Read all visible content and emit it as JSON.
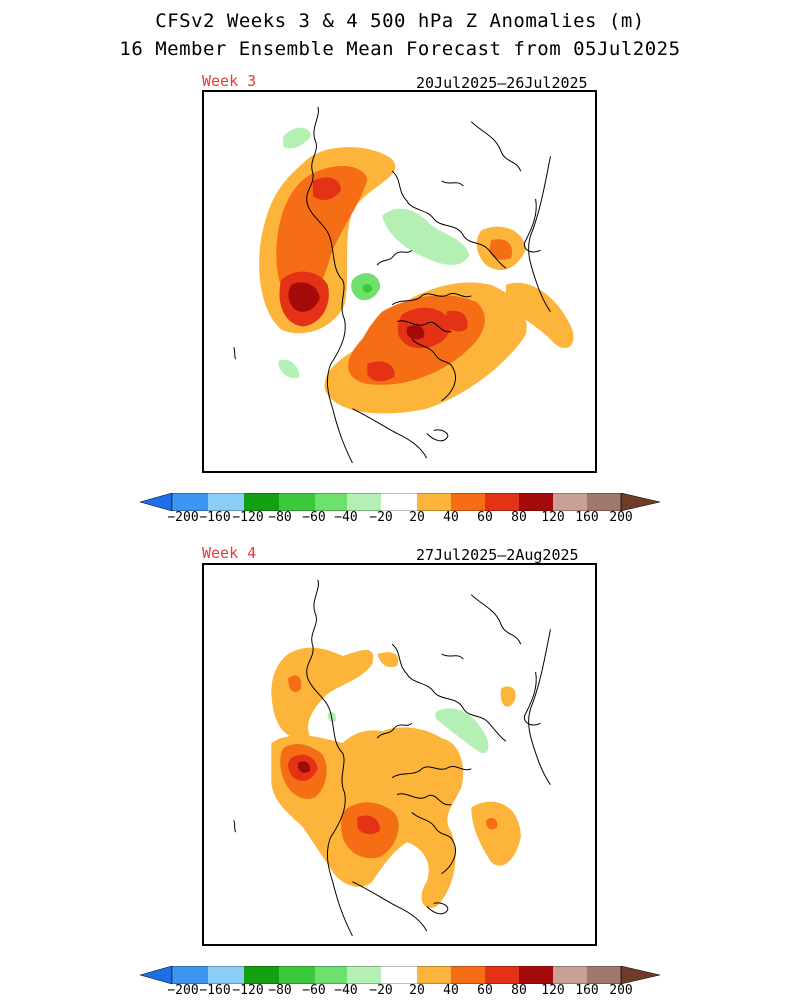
{
  "header": {
    "title_line1": "CFSv2 Weeks 3 & 4 500 hPa Z Anomalies (m)",
    "title_line2": "16 Member Ensemble Mean Forecast from 05Jul2025"
  },
  "panels": [
    {
      "week_label": "Week 3",
      "date_range": "20Jul2025–26Jul2025"
    },
    {
      "week_label": "Week 4",
      "date_range": "27Jul2025–2Aug2025"
    }
  ],
  "colorbar": {
    "ticks": [
      "−200",
      "−160",
      "−120",
      "−80",
      "−60",
      "−40",
      "−20",
      "20",
      "40",
      "60",
      "80",
      "120",
      "160",
      "200"
    ],
    "colors": {
      "le_-200": "#1e6ee8",
      "-200_-160": "#3c96f0",
      "-160_-120": "#8ccdf5",
      "-120_-80": "#13a113",
      "-80_-60": "#3cc83c",
      "-60_-40": "#6ee06e",
      "-40_-20": "#b4f0b4",
      "-20_20": "#ffffff",
      "20_40": "#fcb43a",
      "40_60": "#f56e16",
      "60_80": "#e33215",
      "80_120": "#a50a0a",
      "120_160": "#c8a096",
      "160_200": "#a0786e",
      "ge_200": "#6e3c28"
    }
  }
}
